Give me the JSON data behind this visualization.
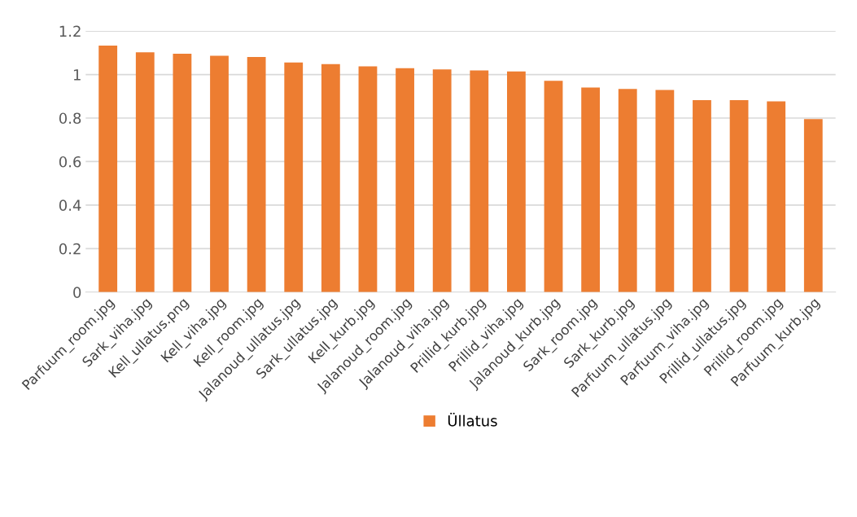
{
  "chart_data": {
    "type": "bar",
    "categories": [
      "Parfuum_room.jpg",
      "Sark_viha.jpg",
      "Kell_ullatus.png",
      "Kell_viha.jpg",
      "Kell_room.jpg",
      "Jalanoud_ullatus.jpg",
      "Sark_ullatus.jpg",
      "Kell_kurb.jpg",
      "Jalanoud_room.jpg",
      "Jalanoud_viha.jpg",
      "Prillid_kurb.jpg",
      "Prillid_viha.jpg",
      "Jalanoud_kurb.jpg",
      "Sark_room.jpg",
      "Sark_kurb.jpg",
      "Parfuum_ullatus.jpg",
      "Parfuum_viha.jpg",
      "Prillid_ullatus.jpg",
      "Prillid_room.jpg",
      "Parfuum_kurb.jpg"
    ],
    "series": [
      {
        "name": "Üllatus",
        "color": "#ed7d31",
        "values": [
          1.133,
          1.102,
          1.096,
          1.086,
          1.081,
          1.055,
          1.048,
          1.038,
          1.029,
          1.024,
          1.019,
          1.014,
          0.971,
          0.94,
          0.934,
          0.929,
          0.882,
          0.882,
          0.877,
          0.795
        ]
      }
    ],
    "ylim": [
      0,
      1.2
    ],
    "yticks": [
      0,
      0.2,
      0.4,
      0.6,
      0.8,
      1,
      1.2
    ],
    "grid": "y",
    "legend": "bottom"
  }
}
